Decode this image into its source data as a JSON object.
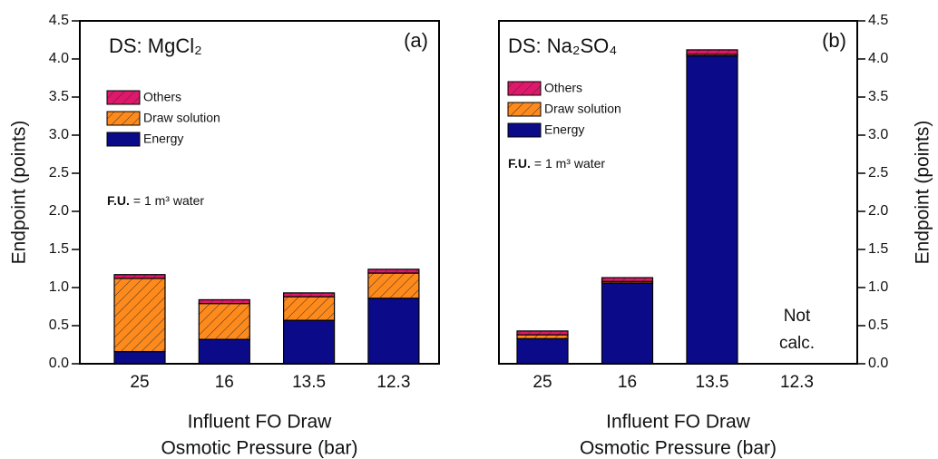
{
  "chart_data": [
    {
      "type": "stacked_bar",
      "title": "DS: MgCl₂",
      "panel_label": "(a)",
      "xlabel": [
        "Influent FO Draw",
        "Osmotic Pressure  (bar)"
      ],
      "ylabel": "Endpoint  (points)",
      "y_axis_side": "left",
      "categories": [
        "25",
        "16",
        "13.5",
        "12.3"
      ],
      "series": [
        {
          "name": "Energy",
          "color": "#0b0b8a",
          "hatch": false,
          "values": [
            0.16,
            0.32,
            0.57,
            0.86
          ]
        },
        {
          "name": "Draw solution",
          "color": "#ff8a1c",
          "hatch": true,
          "values": [
            0.96,
            0.47,
            0.31,
            0.33
          ]
        },
        {
          "name": "Others",
          "color": "#e0186c",
          "hatch": true,
          "values": [
            0.05,
            0.05,
            0.05,
            0.05
          ]
        }
      ],
      "ylim": [
        0,
        4.5
      ],
      "yticks": [
        {
          "value": 0,
          "label": "0.0"
        },
        0.5,
        {
          "value": 1,
          "label": "1.0"
        },
        1.5,
        {
          "value": 2,
          "label": "2.0"
        },
        2.5,
        {
          "value": 3,
          "label": "3.0"
        },
        3.5,
        {
          "value": 4,
          "label": "4.0"
        },
        4.5
      ],
      "legend": "upper left",
      "note_label": "F.U.",
      "note": "= 1 m³ water"
    },
    {
      "type": "stacked_bar",
      "title": "DS: Na₂SO₄",
      "panel_label": "(b)",
      "xlabel": [
        "Influent FO Draw",
        "Osmotic Pressure  (bar)"
      ],
      "ylabel": "Endpoint  (points)",
      "y_axis_side": "right",
      "categories": [
        "25",
        "16",
        "13.5",
        "12.3"
      ],
      "series": [
        {
          "name": "Energy",
          "color": "#0b0b8a",
          "hatch": false,
          "values": [
            0.33,
            1.06,
            4.04,
            null
          ]
        },
        {
          "name": "Draw solution",
          "color": "#ff8a1c",
          "hatch": true,
          "values": [
            0.05,
            0.02,
            0.02,
            null
          ]
        },
        {
          "name": "Others",
          "color": "#e0186c",
          "hatch": true,
          "values": [
            0.05,
            0.05,
            0.06,
            null
          ]
        }
      ],
      "ylim": [
        0,
        4.5
      ],
      "yticks": [
        {
          "value": 0,
          "label": "0.0"
        },
        0.5,
        {
          "value": 1,
          "label": "1.0"
        },
        1.5,
        {
          "value": 2,
          "label": "2.0"
        },
        2.5,
        {
          "value": 3,
          "label": "3.0"
        },
        3.5,
        {
          "value": 4,
          "label": "4.0"
        },
        4.5
      ],
      "legend": "upper left",
      "note_label": "F.U.",
      "note": "= 1 m³ water",
      "annotation": [
        "Not",
        "calc."
      ]
    }
  ]
}
